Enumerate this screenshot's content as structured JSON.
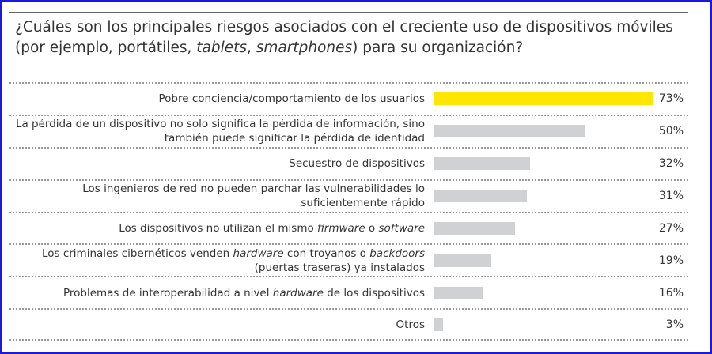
{
  "chart_data": {
    "type": "bar",
    "orientation": "horizontal",
    "title": "¿Cuáles son los principales riesgos asociados con el creciente uso de dispositivos móviles (por ejemplo, portátiles, tablets, smartphones) para su organización?",
    "title_segments": [
      {
        "text": "¿Cuáles son los principales riesgos asociados con el creciente uso de dispositivos móviles (por ejemplo, portátiles, ",
        "italic": false
      },
      {
        "text": "tablets",
        "italic": true
      },
      {
        "text": ", ",
        "italic": false
      },
      {
        "text": "smartphones",
        "italic": true
      },
      {
        "text": ") para su organización?",
        "italic": false
      }
    ],
    "xlim": [
      0,
      100
    ],
    "unit": "%",
    "colors": {
      "highlight": "#ffe600",
      "default": "#d0d1d3"
    },
    "items": [
      {
        "segments": [
          {
            "text": "Pobre conciencia/comportamiento de los usuarios",
            "italic": false
          }
        ],
        "value": 73,
        "label": "73%",
        "highlight": true
      },
      {
        "segments": [
          {
            "text": "La pérdida de un dispositivo no solo significa la pérdida de información, sino también puede significar la pérdida de identidad",
            "italic": false
          }
        ],
        "value": 50,
        "label": "50%"
      },
      {
        "segments": [
          {
            "text": "Secuestro de dispositivos",
            "italic": false
          }
        ],
        "value": 32,
        "label": "32%"
      },
      {
        "segments": [
          {
            "text": "Los ingenieros de red no pueden parchar las vulnerabilidades lo suficientemente rápido",
            "italic": false
          }
        ],
        "value": 31,
        "label": "31%"
      },
      {
        "segments": [
          {
            "text": "Los dispositivos no utilizan el mismo ",
            "italic": false
          },
          {
            "text": "firmware",
            "italic": true
          },
          {
            "text": " o ",
            "italic": false
          },
          {
            "text": "software",
            "italic": true
          }
        ],
        "value": 27,
        "label": "27%"
      },
      {
        "segments": [
          {
            "text": "Los criminales cibernéticos venden ",
            "italic": false
          },
          {
            "text": "hardware",
            "italic": true
          },
          {
            "text": " con troyanos o ",
            "italic": false
          },
          {
            "text": "backdoors",
            "italic": true
          },
          {
            "text": " (puertas traseras) ya instalados",
            "italic": false
          }
        ],
        "value": 19,
        "label": "19%"
      },
      {
        "segments": [
          {
            "text": "Problemas de interoperabilidad a nivel ",
            "italic": false
          },
          {
            "text": "hardware",
            "italic": true
          },
          {
            "text": " de los dispositivos",
            "italic": false
          }
        ],
        "value": 16,
        "label": "16%"
      },
      {
        "segments": [
          {
            "text": "Otros",
            "italic": false
          }
        ],
        "value": 3,
        "label": "3%"
      }
    ]
  }
}
